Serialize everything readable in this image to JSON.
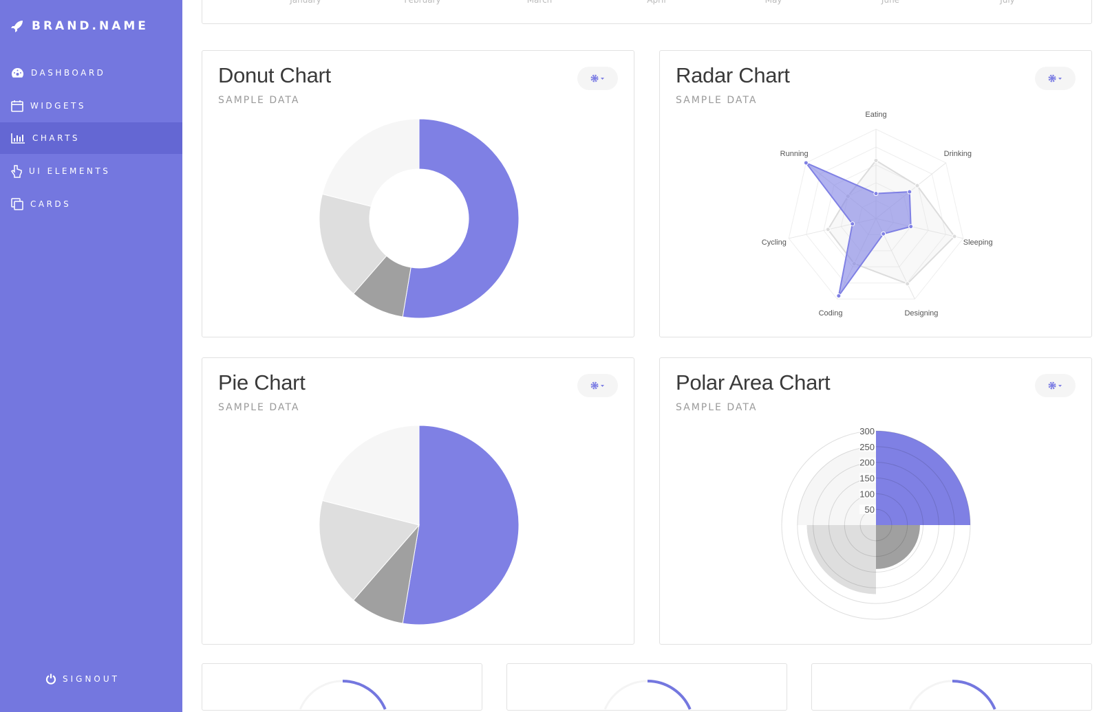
{
  "sidebar": {
    "brand": "BRAND.NAME",
    "items": [
      {
        "label": "DASHBOARD",
        "icon": "dashboard-icon"
      },
      {
        "label": "WIDGETS",
        "icon": "calendar-icon"
      },
      {
        "label": "CHARTS",
        "icon": "bar-chart-icon",
        "active": true
      },
      {
        "label": "UI ELEMENTS",
        "icon": "hand-pointer-icon"
      },
      {
        "label": "CARDS",
        "icon": "clone-icon"
      }
    ],
    "signout": "SIGNOUT"
  },
  "colors": {
    "accent": "#7f80e4",
    "sidebar": "#7477df",
    "sidebar_active": "#6467d3",
    "gray_dark": "#a0a0a0",
    "gray_mid": "#dedede",
    "gray_light": "#f6f6f6"
  },
  "top_card": {
    "x_labels": [
      "January",
      "February",
      "March",
      "April",
      "May",
      "June",
      "July"
    ]
  },
  "cards": [
    {
      "title": "Donut Chart",
      "subtitle": "SAMPLE DATA"
    },
    {
      "title": "Radar Chart",
      "subtitle": "SAMPLE DATA"
    },
    {
      "title": "Pie Chart",
      "subtitle": "SAMPLE DATA"
    },
    {
      "title": "Polar Area Chart",
      "subtitle": "SAMPLE DATA"
    }
  ],
  "chart_data": [
    {
      "type": "line",
      "partial": true,
      "categories": [
        "January",
        "February",
        "March",
        "April",
        "May",
        "June",
        "July"
      ]
    },
    {
      "type": "doughnut",
      "values": [
        300,
        50,
        100,
        120
      ],
      "colors": [
        "#7f80e4",
        "#a0a0a0",
        "#dedede",
        "#f6f6f6"
      ]
    },
    {
      "type": "radar",
      "categories": [
        "Eating",
        "Drinking",
        "Sleeping",
        "Designing",
        "Coding",
        "Cycling",
        "Running"
      ],
      "range": [
        0,
        100
      ],
      "series": [
        {
          "values": [
            65,
            59,
            90,
            81,
            56,
            55,
            40
          ],
          "color": "#dcdcdc"
        },
        {
          "values": [
            28,
            48,
            40,
            19,
            96,
            27,
            100
          ],
          "color": "#7f80e4"
        }
      ]
    },
    {
      "type": "pie",
      "values": [
        300,
        50,
        100,
        120
      ],
      "colors": [
        "#7f80e4",
        "#a0a0a0",
        "#dedede",
        "#f6f6f6"
      ]
    },
    {
      "type": "polarArea",
      "values": [
        300,
        140,
        220,
        250
      ],
      "colors": [
        "#7f80e4",
        "#a0a0a0",
        "#dedede",
        "#f6f6f6"
      ],
      "ticks": [
        "50",
        "100",
        "150",
        "200",
        "250",
        "300"
      ],
      "range": [
        0,
        300
      ]
    },
    {
      "type": "gauge",
      "value": 0.3
    },
    {
      "type": "gauge",
      "value": 0.3
    },
    {
      "type": "gauge",
      "value": 0.3
    }
  ]
}
